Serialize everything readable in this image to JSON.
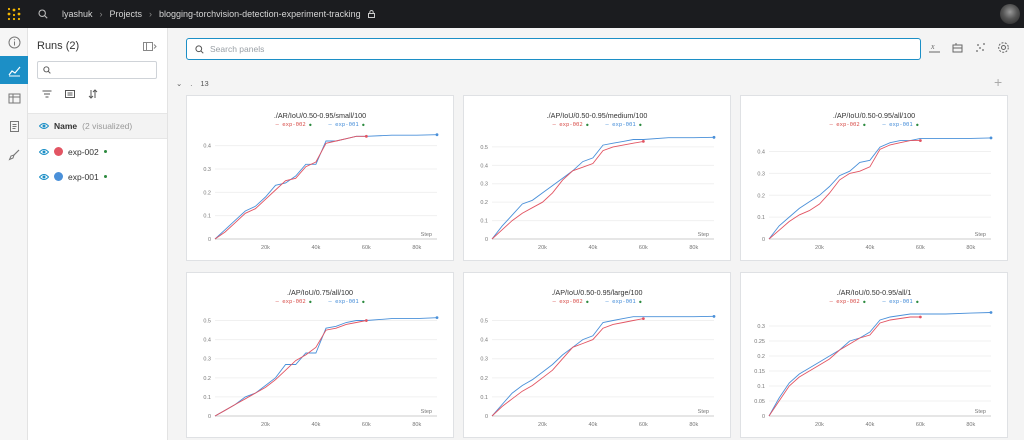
{
  "topbar": {
    "user": "lyashuk",
    "projects": "Projects",
    "project_name": "blogging-torchvision-detection-experiment-tracking"
  },
  "runs": {
    "title": "Runs (2)",
    "name_label": "Name",
    "name_visualized": "(2 visualized)",
    "items": [
      {
        "name": "exp-002",
        "color": "#e25563"
      },
      {
        "name": "exp-001",
        "color": "#4a90d9"
      }
    ]
  },
  "main": {
    "search_placeholder": "Search panels",
    "section_count": "13",
    "section_dot": "."
  },
  "panels": [
    {
      "title": "./AR/IoU/0.50-0.95/small/100"
    },
    {
      "title": "./AP/IoU/0.50-0.95/medium/100"
    },
    {
      "title": "./AP/IoU/0.50-0.95/all/100"
    },
    {
      "title": "./AP/IoU/0.75/all/100"
    },
    {
      "title": "./AP/IoU/0.50-0.95/large/100"
    },
    {
      "title": "./AR/IoU/0.50-0.95/all/1"
    }
  ],
  "legend": {
    "exp2": "exp-002",
    "exp1": "exp-001"
  },
  "chart_data": [
    {
      "type": "line",
      "title": "./AR/IoU/0.50-0.95/small/100",
      "xlabel": "Step",
      "xlim": [
        0,
        88000
      ],
      "ylim": [
        0,
        0.45
      ],
      "y_ticks": [
        0,
        0.1,
        0.2,
        0.3,
        0.4
      ],
      "x_ticks": [
        "20k",
        "40k",
        "60k",
        "80k"
      ],
      "series": [
        {
          "name": "exp-002",
          "color": "#e25563",
          "x": [
            0,
            4000,
            8000,
            12000,
            16000,
            20000,
            24000,
            28000,
            32000,
            36000,
            40000,
            44000,
            48000,
            52000,
            56000,
            60000
          ],
          "y": [
            0,
            0.03,
            0.07,
            0.11,
            0.13,
            0.17,
            0.21,
            0.25,
            0.26,
            0.31,
            0.33,
            0.41,
            0.42,
            0.43,
            0.44,
            0.44
          ]
        },
        {
          "name": "exp-001",
          "color": "#4a90d9",
          "x": [
            0,
            4000,
            8000,
            12000,
            16000,
            20000,
            24000,
            28000,
            32000,
            36000,
            40000,
            44000,
            48000,
            52000,
            56000,
            60000,
            70000,
            80000,
            88000
          ],
          "y": [
            0,
            0.04,
            0.08,
            0.12,
            0.14,
            0.18,
            0.23,
            0.24,
            0.27,
            0.32,
            0.32,
            0.42,
            0.42,
            0.43,
            0.44,
            0.44,
            0.445,
            0.445,
            0.447
          ]
        }
      ]
    },
    {
      "type": "line",
      "title": "./AP/IoU/0.50-0.95/medium/100",
      "xlabel": "Step",
      "xlim": [
        0,
        88000
      ],
      "ylim": [
        0,
        0.57
      ],
      "y_ticks": [
        0,
        0.1,
        0.2,
        0.3,
        0.4,
        0.5
      ],
      "x_ticks": [
        "20k",
        "40k",
        "60k",
        "80k"
      ],
      "series": [
        {
          "name": "exp-002",
          "color": "#e25563",
          "x": [
            0,
            4000,
            8000,
            12000,
            16000,
            20000,
            24000,
            28000,
            32000,
            36000,
            40000,
            44000,
            48000,
            52000,
            56000,
            60000
          ],
          "y": [
            0,
            0.05,
            0.1,
            0.14,
            0.17,
            0.2,
            0.25,
            0.32,
            0.37,
            0.39,
            0.41,
            0.48,
            0.5,
            0.51,
            0.52,
            0.53
          ]
        },
        {
          "name": "exp-001",
          "color": "#4a90d9",
          "x": [
            0,
            4000,
            8000,
            12000,
            16000,
            20000,
            24000,
            28000,
            32000,
            36000,
            40000,
            44000,
            48000,
            52000,
            56000,
            60000,
            70000,
            80000,
            88000
          ],
          "y": [
            0,
            0.07,
            0.13,
            0.19,
            0.21,
            0.25,
            0.29,
            0.33,
            0.37,
            0.42,
            0.44,
            0.51,
            0.52,
            0.53,
            0.54,
            0.54,
            0.55,
            0.55,
            0.552
          ]
        }
      ]
    },
    {
      "type": "line",
      "title": "./AP/IoU/0.50-0.95/all/100",
      "xlabel": "Step",
      "xlim": [
        0,
        88000
      ],
      "ylim": [
        0,
        0.48
      ],
      "y_ticks": [
        0,
        0.1,
        0.2,
        0.3,
        0.4
      ],
      "x_ticks": [
        "20k",
        "40k",
        "60k",
        "80k"
      ],
      "series": [
        {
          "name": "exp-002",
          "color": "#e25563",
          "x": [
            0,
            4000,
            8000,
            12000,
            16000,
            20000,
            24000,
            28000,
            32000,
            36000,
            40000,
            44000,
            48000,
            52000,
            56000,
            60000
          ],
          "y": [
            0,
            0.04,
            0.08,
            0.11,
            0.13,
            0.16,
            0.21,
            0.27,
            0.3,
            0.31,
            0.33,
            0.41,
            0.43,
            0.44,
            0.45,
            0.45
          ]
        },
        {
          "name": "exp-001",
          "color": "#4a90d9",
          "x": [
            0,
            4000,
            8000,
            12000,
            16000,
            20000,
            24000,
            28000,
            32000,
            36000,
            40000,
            44000,
            48000,
            52000,
            56000,
            60000,
            70000,
            80000,
            88000
          ],
          "y": [
            0,
            0.06,
            0.1,
            0.14,
            0.17,
            0.2,
            0.24,
            0.29,
            0.31,
            0.35,
            0.36,
            0.42,
            0.44,
            0.45,
            0.45,
            0.46,
            0.46,
            0.46,
            0.462
          ]
        }
      ]
    },
    {
      "type": "line",
      "title": "./AP/IoU/0.75/all/100",
      "xlabel": "Step",
      "xlim": [
        0,
        88000
      ],
      "ylim": [
        0,
        0.55
      ],
      "y_ticks": [
        0,
        0.1,
        0.2,
        0.3,
        0.4,
        0.5
      ],
      "x_ticks": [
        "20k",
        "40k",
        "60k",
        "80k"
      ],
      "series": [
        {
          "name": "exp-002",
          "color": "#e25563",
          "x": [
            0,
            4000,
            8000,
            12000,
            16000,
            20000,
            24000,
            28000,
            32000,
            36000,
            40000,
            44000,
            48000,
            52000,
            56000,
            60000
          ],
          "y": [
            0,
            0.03,
            0.06,
            0.09,
            0.12,
            0.15,
            0.19,
            0.24,
            0.29,
            0.32,
            0.36,
            0.45,
            0.46,
            0.48,
            0.49,
            0.5
          ]
        },
        {
          "name": "exp-001",
          "color": "#4a90d9",
          "x": [
            0,
            4000,
            8000,
            12000,
            16000,
            20000,
            24000,
            28000,
            32000,
            36000,
            40000,
            44000,
            48000,
            52000,
            56000,
            60000,
            70000,
            80000,
            88000
          ],
          "y": [
            0,
            0.03,
            0.06,
            0.1,
            0.12,
            0.16,
            0.2,
            0.27,
            0.27,
            0.33,
            0.33,
            0.46,
            0.47,
            0.49,
            0.5,
            0.5,
            0.51,
            0.51,
            0.515
          ]
        }
      ]
    },
    {
      "type": "line",
      "title": "./AP/IoU/0.50-0.95/large/100",
      "xlabel": "Step",
      "xlim": [
        0,
        88000
      ],
      "ylim": [
        0,
        0.55
      ],
      "y_ticks": [
        0,
        0.1,
        0.2,
        0.3,
        0.4,
        0.5
      ],
      "x_ticks": [
        "20k",
        "40k",
        "60k",
        "80k"
      ],
      "series": [
        {
          "name": "exp-002",
          "color": "#e25563",
          "x": [
            0,
            4000,
            8000,
            12000,
            16000,
            20000,
            24000,
            28000,
            32000,
            36000,
            40000,
            44000,
            48000,
            52000,
            56000,
            60000
          ],
          "y": [
            0,
            0.05,
            0.09,
            0.13,
            0.16,
            0.2,
            0.24,
            0.3,
            0.36,
            0.38,
            0.4,
            0.46,
            0.48,
            0.49,
            0.5,
            0.51
          ]
        },
        {
          "name": "exp-001",
          "color": "#4a90d9",
          "x": [
            0,
            4000,
            8000,
            12000,
            16000,
            20000,
            24000,
            28000,
            32000,
            36000,
            40000,
            44000,
            48000,
            52000,
            56000,
            60000,
            70000,
            80000,
            88000
          ],
          "y": [
            0,
            0.06,
            0.12,
            0.16,
            0.19,
            0.23,
            0.27,
            0.32,
            0.36,
            0.4,
            0.42,
            0.49,
            0.5,
            0.51,
            0.52,
            0.52,
            0.52,
            0.52,
            0.522
          ]
        }
      ]
    },
    {
      "type": "line",
      "title": "./AR/IoU/0.50-0.95/all/1",
      "xlabel": "Step",
      "xlim": [
        0,
        88000
      ],
      "ylim": [
        0,
        0.35
      ],
      "y_ticks": [
        0,
        0.05,
        0.1,
        0.15,
        0.2,
        0.25,
        0.3
      ],
      "x_ticks": [
        "20k",
        "40k",
        "60k",
        "80k"
      ],
      "series": [
        {
          "name": "exp-002",
          "color": "#e25563",
          "x": [
            0,
            4000,
            8000,
            12000,
            16000,
            20000,
            24000,
            28000,
            32000,
            36000,
            40000,
            44000,
            48000,
            52000,
            56000,
            60000
          ],
          "y": [
            0,
            0.05,
            0.1,
            0.13,
            0.15,
            0.17,
            0.19,
            0.22,
            0.24,
            0.26,
            0.27,
            0.31,
            0.32,
            0.325,
            0.33,
            0.33
          ]
        },
        {
          "name": "exp-001",
          "color": "#4a90d9",
          "x": [
            0,
            4000,
            8000,
            12000,
            16000,
            20000,
            24000,
            28000,
            32000,
            36000,
            40000,
            44000,
            48000,
            52000,
            56000,
            60000,
            70000,
            80000,
            88000
          ],
          "y": [
            0,
            0.06,
            0.11,
            0.14,
            0.16,
            0.18,
            0.2,
            0.22,
            0.25,
            0.26,
            0.28,
            0.32,
            0.33,
            0.335,
            0.34,
            0.34,
            0.34,
            0.343,
            0.345
          ]
        }
      ]
    }
  ]
}
